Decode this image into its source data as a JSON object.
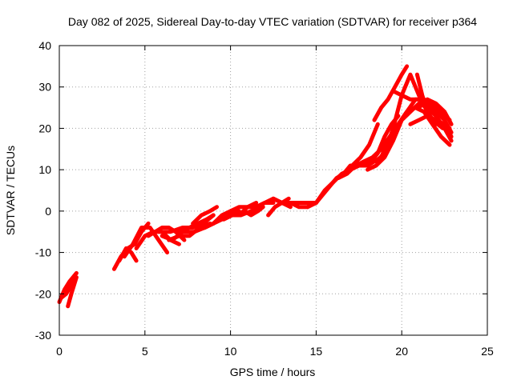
{
  "chart_data": {
    "type": "line",
    "title": "Day 082 of 2025, Sidereal Day-to-day VTEC variation (SDTVAR) for receiver p364",
    "xlabel": "GPS time / hours",
    "ylabel": "SDTVAR / TECUs",
    "xlim": [
      0,
      25
    ],
    "ylim": [
      -30,
      40
    ],
    "xticks": [
      0,
      5,
      10,
      15,
      20,
      25
    ],
    "yticks": [
      -30,
      -20,
      -10,
      0,
      10,
      20,
      30,
      40
    ],
    "grid": true,
    "legend": "none",
    "color": "#ff0000",
    "series": [
      {
        "x": [
          0.0,
          0.3,
          0.6,
          1.0
        ],
        "y": [
          -22,
          -19,
          -17,
          -15
        ]
      },
      {
        "x": [
          0.1,
          0.4,
          0.7,
          0.9
        ],
        "y": [
          -21,
          -20,
          -18,
          -16
        ]
      },
      {
        "x": [
          0.5,
          0.7,
          1.0
        ],
        "y": [
          -23,
          -20,
          -16
        ]
      },
      {
        "x": [
          3.2,
          3.6,
          4.0,
          4.4,
          4.8,
          5.2
        ],
        "y": [
          -14,
          -11,
          -9,
          -8,
          -5,
          -3
        ]
      },
      {
        "x": [
          3.5,
          3.9,
          4.2,
          4.5
        ],
        "y": [
          -12,
          -9,
          -10,
          -12
        ]
      },
      {
        "x": [
          3.8,
          4.3,
          4.8,
          5.3,
          5.8,
          6.3
        ],
        "y": [
          -11,
          -8,
          -4,
          -4,
          -7,
          -10
        ]
      },
      {
        "x": [
          4.5,
          5.0,
          5.5,
          6.0,
          6.5,
          7.0
        ],
        "y": [
          -9,
          -6,
          -5,
          -5,
          -7,
          -8
        ]
      },
      {
        "x": [
          5.2,
          5.6,
          6.0,
          6.4,
          6.8,
          7.3
        ],
        "y": [
          -6,
          -5,
          -4,
          -4,
          -5,
          -7
        ]
      },
      {
        "x": [
          5.8,
          6.5,
          7.2,
          7.8,
          8.4,
          9.0
        ],
        "y": [
          -5,
          -5,
          -4,
          -4,
          -3,
          -1
        ]
      },
      {
        "x": [
          6.0,
          6.6,
          7.2,
          7.9,
          8.5,
          9.0
        ],
        "y": [
          -6,
          -7,
          -5,
          -5,
          -4,
          -3
        ]
      },
      {
        "x": [
          6.4,
          7.0,
          7.6,
          8.2,
          8.8
        ],
        "y": [
          -7,
          -6,
          -6,
          -4,
          -3
        ]
      },
      {
        "x": [
          7.0,
          7.6,
          8.1,
          8.6,
          9.0
        ],
        "y": [
          -5,
          -4,
          -3,
          -2,
          -1
        ]
      },
      {
        "x": [
          7.8,
          8.3,
          8.8,
          9.2
        ],
        "y": [
          -3,
          -1,
          0,
          1
        ]
      },
      {
        "x": [
          8.5,
          9.0,
          9.5,
          10.0,
          10.5
        ],
        "y": [
          -4,
          -3,
          -2,
          -1,
          0
        ]
      },
      {
        "x": [
          9.0,
          9.5,
          10.0,
          10.5,
          11.0,
          11.5,
          12.0,
          12.5
        ],
        "y": [
          -3,
          -1,
          0,
          -1,
          1,
          1,
          2,
          2
        ]
      },
      {
        "x": [
          9.6,
          10.1,
          10.6,
          11.2,
          11.8
        ],
        "y": [
          -2,
          -1,
          -1,
          0,
          1
        ]
      },
      {
        "x": [
          10.0,
          10.5,
          11.0,
          11.5
        ],
        "y": [
          0,
          1,
          1,
          2
        ]
      },
      {
        "x": [
          10.8,
          11.2,
          11.6,
          11.9
        ],
        "y": [
          0,
          -1,
          0,
          1
        ]
      },
      {
        "x": [
          11.5,
          12.0,
          12.5,
          13.0,
          13.5
        ],
        "y": [
          1,
          2,
          3,
          2,
          1
        ]
      },
      {
        "x": [
          12.2,
          12.6,
          13.0,
          13.4
        ],
        "y": [
          -1,
          1,
          2,
          3
        ]
      },
      {
        "x": [
          12.5,
          13.0,
          13.5,
          14.0,
          14.5,
          15.0
        ],
        "y": [
          3,
          2,
          2,
          1,
          1,
          2
        ]
      },
      {
        "x": [
          13.5,
          14.0,
          14.5,
          15.0
        ],
        "y": [
          2,
          2,
          2,
          2
        ]
      },
      {
        "x": [
          14.5,
          15.0,
          15.4,
          15.8,
          16.2,
          16.6,
          17.0,
          17.4,
          17.8,
          18.2,
          18.6,
          19.0,
          19.4,
          19.8
        ],
        "y": [
          1,
          2,
          4,
          6,
          8,
          9,
          11,
          11,
          12,
          12,
          14,
          18,
          21,
          23
        ]
      },
      {
        "x": [
          15.0,
          15.5,
          16.0,
          16.5,
          17.0,
          17.5,
          18.0,
          18.5,
          19.0,
          19.5,
          20.0,
          20.5,
          21.0,
          21.5,
          22.0
        ],
        "y": [
          2,
          5,
          7,
          9,
          10,
          11,
          12,
          12,
          14,
          20,
          28,
          33,
          28,
          24,
          21
        ]
      },
      {
        "x": [
          16.3,
          16.8,
          17.3,
          17.8,
          18.3,
          18.8,
          19.3,
          19.8,
          20.3,
          20.8,
          21.3,
          21.8,
          22.3,
          22.8
        ],
        "y": [
          8,
          9,
          11,
          12,
          13,
          15,
          18,
          21,
          24,
          25,
          24,
          21,
          18,
          16
        ]
      },
      {
        "x": [
          16.6,
          17.1,
          17.6,
          18.1,
          18.6
        ],
        "y": [
          9,
          11,
          13,
          16,
          21
        ]
      },
      {
        "x": [
          17.0,
          17.5,
          18.0,
          18.4,
          18.8,
          19.0,
          19.3
        ],
        "y": [
          10,
          11,
          11,
          12,
          13,
          15,
          17
        ]
      },
      {
        "x": [
          18.0,
          18.5,
          19.0,
          19.5,
          20.0,
          20.5,
          21.0,
          21.5,
          22.0,
          22.5,
          22.9
        ],
        "y": [
          10,
          11,
          13,
          17,
          22,
          24,
          26,
          25,
          23,
          20,
          17
        ]
      },
      {
        "x": [
          18.4,
          18.8,
          19.2,
          19.6,
          20.0,
          20.3
        ],
        "y": [
          22,
          25,
          27,
          30,
          33,
          35
        ]
      },
      {
        "x": [
          18.8,
          19.3,
          19.8,
          20.3,
          20.8,
          21.3,
          21.8,
          22.3,
          22.8
        ],
        "y": [
          15,
          17,
          21,
          24,
          27,
          27,
          26,
          24,
          22
        ]
      },
      {
        "x": [
          19.5,
          20.0,
          20.5,
          21.0,
          21.5,
          22.0,
          22.5,
          22.9
        ],
        "y": [
          29,
          28,
          27,
          27,
          26,
          24,
          22,
          19
        ]
      },
      {
        "x": [
          20.5,
          21.0,
          21.5,
          22.0,
          22.5,
          22.9
        ],
        "y": [
          21,
          22,
          23,
          22,
          21,
          18
        ]
      },
      {
        "x": [
          20.9,
          21.2,
          21.5,
          21.8,
          22.1,
          22.4,
          22.8
        ],
        "y": [
          33,
          28,
          24,
          22,
          21,
          20,
          20
        ]
      },
      {
        "x": [
          21.0,
          21.5,
          22.0,
          22.5,
          22.9
        ],
        "y": [
          25,
          27,
          26,
          24,
          21
        ]
      }
    ]
  }
}
